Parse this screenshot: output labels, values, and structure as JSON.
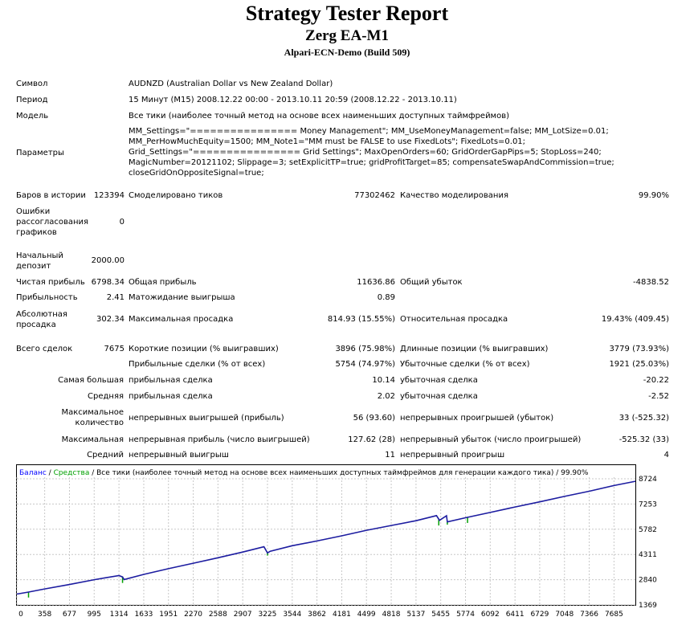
{
  "header": {
    "title": "Strategy Tester Report",
    "expert": "Zerg EA-M1",
    "server": "Alpari-ECN-Demo (Build 509)"
  },
  "info": {
    "symbol_label": "Символ",
    "symbol_value": "AUDNZD (Australian Dollar vs New Zealand Dollar)",
    "period_label": "Период",
    "period_value": "15 Минут (M15) 2008.12.22 00:00 - 2013.10.11 20:59 (2008.12.22 - 2013.10.11)",
    "model_label": "Модель",
    "model_value": "Все тики (наиболее точный метод на основе всех наименьших доступных таймфреймов)",
    "params_label": "Параметры",
    "params_lines": [
      "MM_Settings=\"================ Money Management\"; MM_UseMoneyManagement=false; MM_LotSize=0.01;",
      "MM_PerHowMuchEquity=1500; MM_Note1=\"MM must be FALSE to use FixedLots\"; FixedLots=0.01;",
      "Grid_Settings=\"================ Grid Settings\"; MaxOpenOrders=60; GridOrderGapPips=5; StopLoss=240;",
      "MagicNumber=20121102; Slippage=3; setExplicitTP=true; gridProfitTarget=85; compensateSwapAndCommission=true;",
      "closeGridOnOppositeSignal=true;"
    ]
  },
  "stats": {
    "bars_label": "Баров в истории",
    "bars_value": "123394",
    "ticks_label": "Смоделировано тиков",
    "ticks_value": "77302462",
    "quality_label": "Качество моделирования",
    "quality_value": "99.90%",
    "mismatch_label": "Ошибки рассогласования графиков",
    "mismatch_value": "0",
    "deposit_label": "Начальный депозит",
    "deposit_value": "2000.00",
    "net_label": "Чистая прибыль",
    "net_value": "6798.34",
    "gross_profit_label": "Общая прибыль",
    "gross_profit_value": "11636.86",
    "gross_loss_label": "Общий убыток",
    "gross_loss_value": "-4838.52",
    "pf_label": "Прибыльность",
    "pf_value": "2.41",
    "payoff_label": "Матожидание выигрыша",
    "payoff_value": "0.89",
    "abs_dd_label": "Абсолютная просадка",
    "abs_dd_value": "302.34",
    "max_dd_label": "Максимальная просадка",
    "max_dd_value": "814.93 (15.55%)",
    "rel_dd_label": "Относительная просадка",
    "rel_dd_value": "19.43% (409.45)",
    "trades_label": "Всего сделок",
    "trades_value": "7675",
    "short_label": "Короткие позиции (% выигравших)",
    "short_value": "3896 (75.98%)",
    "long_label": "Длинные позиции (% выигравших)",
    "long_value": "3779 (73.93%)",
    "profit_trades_label": "Прибыльные сделки (% от всех)",
    "profit_trades_value": "5754 (74.97%)",
    "loss_trades_label": "Убыточные сделки (% от всех)",
    "loss_trades_value": "1921 (25.03%)",
    "largest_label": "Самая большая",
    "largest_profit_label": "прибыльная сделка",
    "largest_profit_value": "10.14",
    "largest_loss_label": "убыточная сделка",
    "largest_loss_value": "-20.22",
    "average_label": "Средняя",
    "average_profit_label": "прибыльная сделка",
    "average_profit_value": "2.02",
    "average_loss_label": "убыточная сделка",
    "average_loss_value": "-2.52",
    "max_count_label": "Максимальное количество",
    "consec_wins_label": "непрерывных выигрышей (прибыль)",
    "consec_wins_value": "56 (93.60)",
    "consec_losses_label": "непрерывных проигрышей (убыток)",
    "consec_losses_value": "33 (-525.32)",
    "maximal_label": "Максимальная",
    "consec_profit_label": "непрерывная прибыль (число выигрышей)",
    "consec_profit_value": "127.62 (28)",
    "consec_loss_label": "непрерывный убыток (число проигрышей)",
    "consec_loss_value": "-525.32 (33)",
    "avg_label": "Средний",
    "avg_wins_label": "непрерывный выигрыш",
    "avg_wins_value": "11",
    "avg_losses_label": "непрерывный проигрыш",
    "avg_losses_value": "4"
  },
  "chart_data": {
    "type": "line",
    "legend": {
      "balance": "Баланс",
      "sep1": " / ",
      "equity": "Средства",
      "sep2": " / ",
      "rest": "Все тики (наиболее точный метод на основе всех наименьших доступных таймфреймов для генерации каждого тика) / 99.90%"
    },
    "colors": {
      "balance": "#0000ff",
      "equity": "#00a000",
      "line": "#1c1ca0"
    },
    "x_ticks": [
      "0",
      "358",
      "677",
      "995",
      "1314",
      "1633",
      "1951",
      "2270",
      "2588",
      "2907",
      "3225",
      "3544",
      "3862",
      "4181",
      "4499",
      "4818",
      "5137",
      "5455",
      "5774",
      "6092",
      "6411",
      "6729",
      "7048",
      "7366",
      "7685"
    ],
    "y_ticks": [
      "8724",
      "7253",
      "5782",
      "4311",
      "2840",
      "1369"
    ],
    "xlim": [
      0,
      7960
    ],
    "ylim": [
      1369,
      8724
    ],
    "series": [
      {
        "name": "Баланс",
        "x": [
          0,
          150,
          358,
          677,
          995,
          1314,
          1360,
          1380,
          1633,
          1951,
          2270,
          2588,
          2907,
          3180,
          3225,
          3260,
          3544,
          3862,
          4181,
          4499,
          4818,
          5137,
          5400,
          5440,
          5455,
          5530,
          5540,
          5774,
          6092,
          6411,
          6729,
          7048,
          7366,
          7685,
          7960
        ],
        "y": [
          2000,
          2120,
          2300,
          2560,
          2840,
          3080,
          3000,
          2850,
          3150,
          3480,
          3800,
          4120,
          4450,
          4760,
          4400,
          4500,
          4820,
          5100,
          5400,
          5720,
          6000,
          6280,
          6580,
          6300,
          6350,
          6570,
          6210,
          6450,
          6760,
          7080,
          7380,
          7700,
          8000,
          8330,
          8580
        ]
      }
    ],
    "equity_spikes": [
      {
        "x": 150,
        "low": 1800
      },
      {
        "x": 1360,
        "low": 2650
      },
      {
        "x": 3225,
        "low": 4250
      },
      {
        "x": 5430,
        "low": 6000
      },
      {
        "x": 5540,
        "low": 6050
      },
      {
        "x": 5800,
        "low": 6150
      }
    ]
  }
}
